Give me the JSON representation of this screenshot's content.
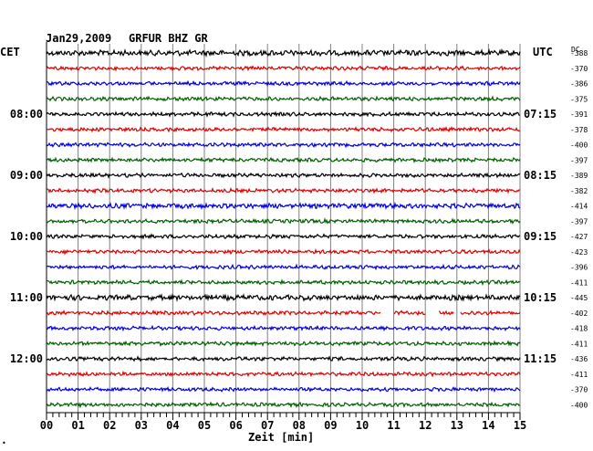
{
  "header": {
    "date": "Jan29,2009",
    "station": "GRFUR BHZ GR",
    "left_zone": "CET",
    "right_zone": "UTC",
    "dc_label": "DC"
  },
  "chart_data": {
    "type": "line",
    "title": "Jan29,2009   GRFUR BHZ GR",
    "xlabel": "Zeit [min]",
    "xlim": [
      0,
      15
    ],
    "x_ticks": [
      "00",
      "01",
      "02",
      "03",
      "04",
      "05",
      "06",
      "07",
      "08",
      "09",
      "10",
      "11",
      "12",
      "13",
      "14",
      "15"
    ],
    "trace_colors": [
      "#000000",
      "#e00000",
      "#0000e0",
      "#006000"
    ],
    "cet_labels": [
      {
        "row": 4,
        "text": "08:00"
      },
      {
        "row": 8,
        "text": "09:00"
      },
      {
        "row": 12,
        "text": "10:00"
      },
      {
        "row": 16,
        "text": "11:00"
      },
      {
        "row": 20,
        "text": "12:00"
      }
    ],
    "utc_labels": [
      {
        "row": 4,
        "text": "07:15"
      },
      {
        "row": 8,
        "text": "08:15"
      },
      {
        "row": 12,
        "text": "09:15"
      },
      {
        "row": 16,
        "text": "10:15"
      },
      {
        "row": 20,
        "text": "11:15"
      }
    ],
    "dc_offsets": [
      "-388",
      "-370",
      "-386",
      "-375",
      "-391",
      "-378",
      "-400",
      "-397",
      "-389",
      "-382",
      "-414",
      "-397",
      "-427",
      "-423",
      "-396",
      "-411",
      "-445",
      "-402",
      "-418",
      "-411",
      "-436",
      "-411",
      "-370",
      "-400"
    ],
    "gaps": [
      {
        "row": 17,
        "from_min": 10.6,
        "to_min": 11.0
      },
      {
        "row": 17,
        "from_min": 12.0,
        "to_min": 12.4
      },
      {
        "row": 17,
        "from_min": 12.9,
        "to_min": 13.1
      }
    ],
    "amplitude_rows": [
      {
        "row": 0,
        "amp": 2.5
      },
      {
        "row": 10,
        "amp": 2.2
      },
      {
        "row": 16,
        "amp": 2.4
      }
    ]
  },
  "footer": {
    "corner_mark": "•"
  }
}
